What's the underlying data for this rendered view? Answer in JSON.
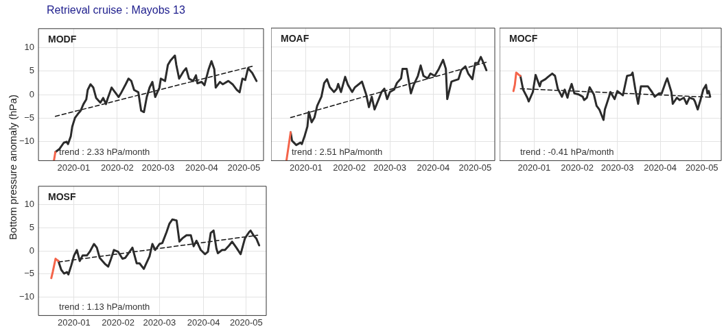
{
  "chart_data": [
    {
      "type": "line",
      "title": "Retrieval cruise : Mayobs 13",
      "subtitle": "MODF",
      "ylabel": "Bottom pressure anomaly (hPa)",
      "annotations": [
        "trend : 2.33 hPa/month"
      ],
      "xlim": [
        "2019-12-07",
        "2020-05-15"
      ],
      "ylim": [
        -14,
        14
      ],
      "xticks": [
        {
          "value": "2020-01-01",
          "label": "2020-01"
        },
        {
          "value": "2020-02-01",
          "label": "2020-02"
        },
        {
          "value": "2020-03-01",
          "label": "2020-03"
        },
        {
          "value": "2020-04-01",
          "label": "2020-04"
        },
        {
          "value": "2020-05-01",
          "label": "2020-05"
        }
      ],
      "yticks": [
        -10,
        -5,
        0,
        5,
        10
      ],
      "grid": true,
      "legend": false,
      "series": [
        {
          "color": "#f4644a",
          "x": [
            "2019-12-18",
            "2019-12-19"
          ],
          "values": [
            -14,
            -12.2
          ]
        },
        {
          "color": "#2b2b2b",
          "x": [
            "2019-12-19",
            "2019-12-22",
            "2019-12-25",
            "2019-12-27",
            "2019-12-28",
            "2019-12-30",
            "2019-12-31",
            "2020-01-02",
            "2020-01-04",
            "2020-01-06",
            "2020-01-08",
            "2020-01-10",
            "2020-01-11",
            "2020-01-13",
            "2020-01-15",
            "2020-01-17",
            "2020-01-20",
            "2020-01-22",
            "2020-01-24",
            "2020-01-25",
            "2020-01-28",
            "2020-01-30",
            "2020-02-02",
            "2020-02-04",
            "2020-02-07",
            "2020-02-09",
            "2020-02-11",
            "2020-02-13",
            "2020-02-16",
            "2020-02-18",
            "2020-02-20",
            "2020-02-22",
            "2020-02-24",
            "2020-02-26",
            "2020-02-28",
            "2020-03-02",
            "2020-03-03",
            "2020-03-06",
            "2020-03-08",
            "2020-03-10",
            "2020-03-13",
            "2020-03-14",
            "2020-03-16",
            "2020-03-19",
            "2020-03-21",
            "2020-03-23",
            "2020-03-26",
            "2020-03-28",
            "2020-03-29",
            "2020-04-01",
            "2020-04-03",
            "2020-04-06",
            "2020-04-08",
            "2020-04-10",
            "2020-04-11",
            "2020-04-14",
            "2020-04-16",
            "2020-04-20",
            "2020-04-23",
            "2020-04-26",
            "2020-04-28",
            "2020-04-30",
            "2020-05-02",
            "2020-05-04",
            "2020-05-07",
            "2020-05-10"
          ],
          "values": [
            -12.2,
            -11.5,
            -10.2,
            -10,
            -10.5,
            -8.8,
            -6.8,
            -4.9,
            -4.1,
            -3.4,
            -2,
            -1,
            1,
            2.2,
            1.5,
            -0.7,
            -1.7,
            -0.7,
            -2,
            -1,
            1.5,
            0.7,
            -0.5,
            0.5,
            2.2,
            3.4,
            2.9,
            1,
            0.5,
            -3.4,
            -3.7,
            -0.5,
            1.5,
            2.7,
            -0.5,
            1.5,
            3.4,
            2.9,
            6.3,
            7.3,
            8.3,
            6.3,
            3.4,
            4.9,
            5.6,
            3.4,
            2.9,
            4.1,
            2.4,
            2.7,
            2,
            5.4,
            7.1,
            5.4,
            1.5,
            2.7,
            2.2,
            2.9,
            2.2,
            1,
            0.5,
            3.4,
            3.1,
            5.6,
            4.6,
            2.9
          ]
        },
        {
          "type": "line",
          "line_style": "dashed",
          "color": "#111111",
          "x": [
            "2019-12-19",
            "2020-05-08"
          ],
          "values": [
            -4.6,
            6.1
          ]
        }
      ]
    },
    {
      "type": "line",
      "subtitle": "MOAF",
      "annotations": [
        "trend : 2.51 hPa/month"
      ],
      "xlim": [
        "2019-12-07",
        "2020-05-15"
      ],
      "ylim": [
        -14,
        14
      ],
      "xticks": [
        {
          "value": "2020-01-01",
          "label": "2020-01"
        },
        {
          "value": "2020-02-01",
          "label": "2020-02"
        },
        {
          "value": "2020-03-01",
          "label": "2020-03"
        },
        {
          "value": "2020-04-01",
          "label": "2020-04"
        },
        {
          "value": "2020-05-01",
          "label": "2020-05"
        }
      ],
      "yticks": [
        -10,
        -5,
        0,
        5,
        10
      ],
      "tick_labels": "x",
      "grid": true,
      "legend": false,
      "series": [
        {
          "color": "#f4644a",
          "x": [
            "2019-12-18",
            "2019-12-21"
          ],
          "values": [
            -14,
            -8
          ]
        },
        {
          "color": "#2b2b2b",
          "x": [
            "2019-12-21",
            "2019-12-22",
            "2019-12-25",
            "2019-12-28",
            "2019-12-29",
            "2019-12-31",
            "2020-01-02",
            "2020-01-03",
            "2020-01-05",
            "2020-01-07",
            "2020-01-09",
            "2020-01-12",
            "2020-01-14",
            "2020-01-16",
            "2020-01-18",
            "2020-01-21",
            "2020-01-23",
            "2020-01-24",
            "2020-01-26",
            "2020-01-29",
            "2020-01-31",
            "2020-02-03",
            "2020-02-05",
            "2020-02-08",
            "2020-02-10",
            "2020-02-13",
            "2020-02-15",
            "2020-02-17",
            "2020-02-19",
            "2020-02-22",
            "2020-02-24",
            "2020-02-26",
            "2020-02-28",
            "2020-03-01",
            "2020-03-04",
            "2020-03-06",
            "2020-03-09",
            "2020-03-10",
            "2020-03-13",
            "2020-03-16",
            "2020-03-18",
            "2020-03-21",
            "2020-03-23",
            "2020-03-25",
            "2020-03-28",
            "2020-03-30",
            "2020-04-02",
            "2020-04-05",
            "2020-04-08",
            "2020-04-10",
            "2020-04-11",
            "2020-04-14",
            "2020-04-16",
            "2020-04-19",
            "2020-04-21",
            "2020-04-24",
            "2020-04-26",
            "2020-04-29",
            "2020-05-01",
            "2020-05-03",
            "2020-05-05",
            "2020-05-07",
            "2020-05-09"
          ],
          "values": [
            -8,
            -9.8,
            -10.7,
            -10.2,
            -10.5,
            -8.8,
            -6.8,
            -3.7,
            -5.9,
            -4.9,
            -2.4,
            -0.5,
            2.4,
            3.2,
            1.5,
            0.5,
            1.2,
            2.2,
            0.5,
            3.7,
            2,
            0.5,
            1.5,
            2.2,
            2.7,
            0,
            -2.7,
            -0.5,
            -3.2,
            -1,
            0.5,
            1.2,
            -1,
            0.5,
            1,
            2.4,
            3.4,
            5.4,
            5.4,
            0.2,
            2,
            3.9,
            6.1,
            3.9,
            3.4,
            4.4,
            3.9,
            5.4,
            7.3,
            5.4,
            -1,
            2.7,
            2.9,
            3.2,
            5.1,
            5.9,
            4.4,
            3.2,
            6.6,
            6.6,
            7.9,
            6.6,
            5.1
          ]
        },
        {
          "type": "line",
          "line_style": "dashed",
          "color": "#111111",
          "x": [
            "2019-12-21",
            "2020-05-09"
          ],
          "values": [
            -4.9,
            6.8
          ]
        }
      ]
    },
    {
      "type": "line",
      "subtitle": "MOCF",
      "annotations": [
        "trend : -0.41 hPa/month"
      ],
      "xlim": [
        "2019-12-07",
        "2020-05-15"
      ],
      "ylim": [
        -14,
        14
      ],
      "xticks": [
        {
          "value": "2020-01-01",
          "label": "2020-01"
        },
        {
          "value": "2020-02-01",
          "label": "2020-02"
        },
        {
          "value": "2020-03-01",
          "label": "2020-03"
        },
        {
          "value": "2020-04-01",
          "label": "2020-04"
        },
        {
          "value": "2020-05-01",
          "label": "2020-05"
        }
      ],
      "yticks": [
        -10,
        -5,
        0,
        5,
        10
      ],
      "tick_labels": "x",
      "grid": true,
      "legend": false,
      "series": [
        {
          "color": "#f4644a",
          "x": [
            "2019-12-17",
            "2019-12-18",
            "2019-12-19",
            "2019-12-21",
            "2019-12-22"
          ],
          "values": [
            0.7,
            2,
            4.6,
            4.1,
            3.9
          ]
        },
        {
          "color": "#2b2b2b",
          "x": [
            "2019-12-22",
            "2019-12-24",
            "2019-12-27",
            "2019-12-28",
            "2019-12-31",
            "2020-01-02",
            "2020-01-05",
            "2020-01-06",
            "2020-01-09",
            "2020-01-11",
            "2020-01-14",
            "2020-01-16",
            "2020-01-18",
            "2020-01-21",
            "2020-01-23",
            "2020-01-25",
            "2020-01-26",
            "2020-01-28",
            "2020-01-30",
            "2020-02-02",
            "2020-02-05",
            "2020-02-06",
            "2020-02-08",
            "2020-02-10",
            "2020-02-13",
            "2020-02-15",
            "2020-02-17",
            "2020-02-20",
            "2020-02-21",
            "2020-02-24",
            "2020-02-25",
            "2020-02-28",
            "2020-03-01",
            "2020-03-05",
            "2020-03-08",
            "2020-03-11",
            "2020-03-12",
            "2020-03-14",
            "2020-03-16",
            "2020-03-18",
            "2020-03-21",
            "2020-03-23",
            "2020-03-26",
            "2020-03-28",
            "2020-03-31",
            "2020-04-02",
            "2020-04-05",
            "2020-04-06",
            "2020-04-09",
            "2020-04-10",
            "2020-04-13",
            "2020-04-15",
            "2020-04-18",
            "2020-04-20",
            "2020-04-22",
            "2020-04-25",
            "2020-04-26",
            "2020-04-28",
            "2020-04-30",
            "2020-05-02",
            "2020-05-04",
            "2020-05-05",
            "2020-05-06",
            "2020-05-07"
          ],
          "values": [
            3.9,
            1,
            -0.7,
            -1.5,
            0.5,
            4.1,
            1.7,
            2.7,
            3.2,
            3.7,
            4.4,
            3.9,
            1.2,
            -0.5,
            1,
            -0.7,
            0.5,
            2.2,
            0.2,
            0,
            -0.5,
            -1.2,
            -0.7,
            1.5,
            0,
            -2.4,
            -3.2,
            -5.4,
            -3.2,
            -0.5,
            0.5,
            -1,
            0.7,
            -0.2,
            3.9,
            4.1,
            4.6,
            1,
            -2,
            1.7,
            1.7,
            1.7,
            0.5,
            -0.5,
            0.2,
            0.2,
            2.7,
            3.4,
            0.5,
            -2,
            -0.7,
            -1.2,
            -0.7,
            -2,
            -0.7,
            -1,
            -1.5,
            -3.2,
            -1.2,
            1,
            2,
            0.2,
            0.7,
            -0.5
          ]
        },
        {
          "type": "line",
          "line_style": "dashed",
          "color": "#111111",
          "x": [
            "2019-12-22",
            "2020-05-07"
          ],
          "values": [
            1.2,
            -0.6
          ]
        }
      ]
    },
    {
      "type": "line",
      "subtitle": "MOSF",
      "annotations": [
        "trend : 1.13 hPa/month"
      ],
      "xlim": [
        "2019-12-07",
        "2020-05-15"
      ],
      "ylim": [
        -14,
        14
      ],
      "xticks": [
        {
          "value": "2020-01-01",
          "label": "2020-01"
        },
        {
          "value": "2020-02-01",
          "label": "2020-02"
        },
        {
          "value": "2020-03-01",
          "label": "2020-03"
        },
        {
          "value": "2020-04-01",
          "label": "2020-04"
        },
        {
          "value": "2020-05-01",
          "label": "2020-05"
        }
      ],
      "yticks": [
        -10,
        -5,
        0,
        5,
        10
      ],
      "grid": true,
      "legend": false,
      "series": [
        {
          "color": "#f4644a",
          "x": [
            "2019-12-16",
            "2019-12-17",
            "2019-12-19",
            "2019-12-21"
          ],
          "values": [
            -5.9,
            -4.6,
            -1.7,
            -2.2
          ]
        },
        {
          "color": "#2b2b2b",
          "x": [
            "2019-12-21",
            "2019-12-23",
            "2019-12-25",
            "2019-12-27",
            "2019-12-28",
            "2019-12-30",
            "2020-01-01",
            "2020-01-03",
            "2020-01-05",
            "2020-01-07",
            "2020-01-10",
            "2020-01-12",
            "2020-01-15",
            "2020-01-17",
            "2020-01-19",
            "2020-01-21",
            "2020-01-23",
            "2020-01-25",
            "2020-01-27",
            "2020-01-29",
            "2020-02-01",
            "2020-02-04",
            "2020-02-06",
            "2020-02-09",
            "2020-02-11",
            "2020-02-14",
            "2020-02-16",
            "2020-02-19",
            "2020-02-20",
            "2020-02-23",
            "2020-02-25",
            "2020-02-27",
            "2020-03-01",
            "2020-03-03",
            "2020-03-06",
            "2020-03-08",
            "2020-03-10",
            "2020-03-13",
            "2020-03-15",
            "2020-03-17",
            "2020-03-20",
            "2020-03-23",
            "2020-03-25",
            "2020-03-27",
            "2020-03-30",
            "2020-04-02",
            "2020-04-04",
            "2020-04-06",
            "2020-04-08",
            "2020-04-10",
            "2020-04-11",
            "2020-04-14",
            "2020-04-16",
            "2020-04-19",
            "2020-04-21",
            "2020-04-24",
            "2020-04-27",
            "2020-04-30",
            "2020-05-03",
            "2020-05-04",
            "2020-05-06",
            "2020-05-08",
            "2020-05-10"
          ],
          "values": [
            -2.2,
            -4.1,
            -4.9,
            -4.6,
            -5.1,
            -3.2,
            -1,
            0.2,
            -2.2,
            -1,
            -1,
            -0.2,
            1.5,
            0.7,
            -1.5,
            -2.2,
            -2.9,
            -3.4,
            -1.7,
            0.2,
            -0.2,
            -1.7,
            -1.5,
            -0.2,
            0.7,
            -2.7,
            -2.7,
            -3.9,
            -3.2,
            -1.2,
            1.5,
            0.2,
            1.5,
            1.7,
            4.1,
            5.9,
            6.8,
            6.6,
            2,
            2.7,
            3.4,
            3.4,
            1,
            2.2,
            0.2,
            -0.7,
            -0.2,
            3.9,
            4.4,
            0.5,
            -0.5,
            0.2,
            0.2,
            1.2,
            2,
            0.7,
            -0.7,
            2.7,
            4.1,
            4.4,
            3.4,
            2.7,
            1.2
          ]
        },
        {
          "type": "line",
          "line_style": "dashed",
          "color": "#111111",
          "x": [
            "2019-12-21",
            "2020-05-09"
          ],
          "values": [
            -2.4,
            3.4
          ]
        }
      ]
    }
  ]
}
